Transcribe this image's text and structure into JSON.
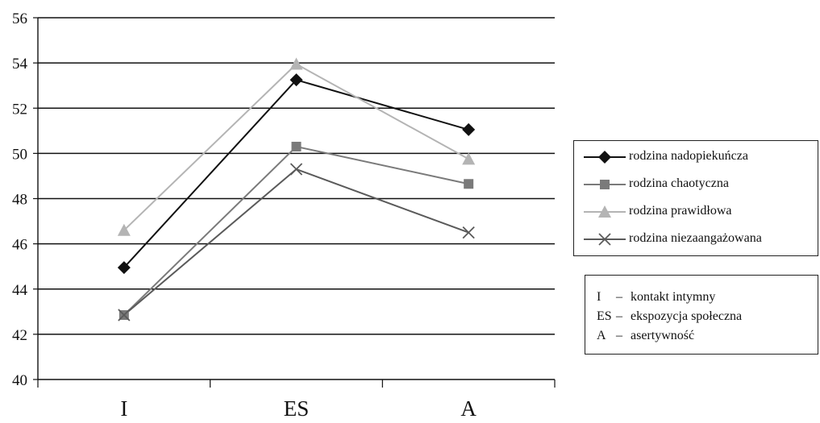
{
  "chart_data": {
    "type": "line",
    "categories": [
      "I",
      "ES",
      "A"
    ],
    "ylim": [
      40,
      56
    ],
    "yticks": [
      40,
      42,
      44,
      46,
      48,
      50,
      52,
      54,
      56
    ],
    "grid": true,
    "legend_position": "right",
    "series": [
      {
        "name": "rodzina nadopiekuńcza",
        "values": [
          44.95,
          53.25,
          51.05
        ],
        "marker": "diamond",
        "color": "#111111"
      },
      {
        "name": "rodzina chaotyczna",
        "values": [
          42.85,
          50.3,
          48.65
        ],
        "marker": "square",
        "color": "#7a7a7a"
      },
      {
        "name": "rodzina prawidłowa",
        "values": [
          46.6,
          53.95,
          49.75
        ],
        "marker": "triangle",
        "color": "#b4b4b4"
      },
      {
        "name": "rodzina niezaangażowana",
        "values": [
          42.85,
          49.3,
          46.5
        ],
        "marker": "x",
        "color": "#5a5a5a"
      }
    ]
  },
  "abbreviations": [
    {
      "key": "I",
      "dash": "–",
      "text": "kontakt intymny"
    },
    {
      "key": "ES",
      "dash": "–",
      "text": "ekspozycja społeczna"
    },
    {
      "key": "A",
      "dash": "–",
      "text": "asertywność"
    }
  ]
}
